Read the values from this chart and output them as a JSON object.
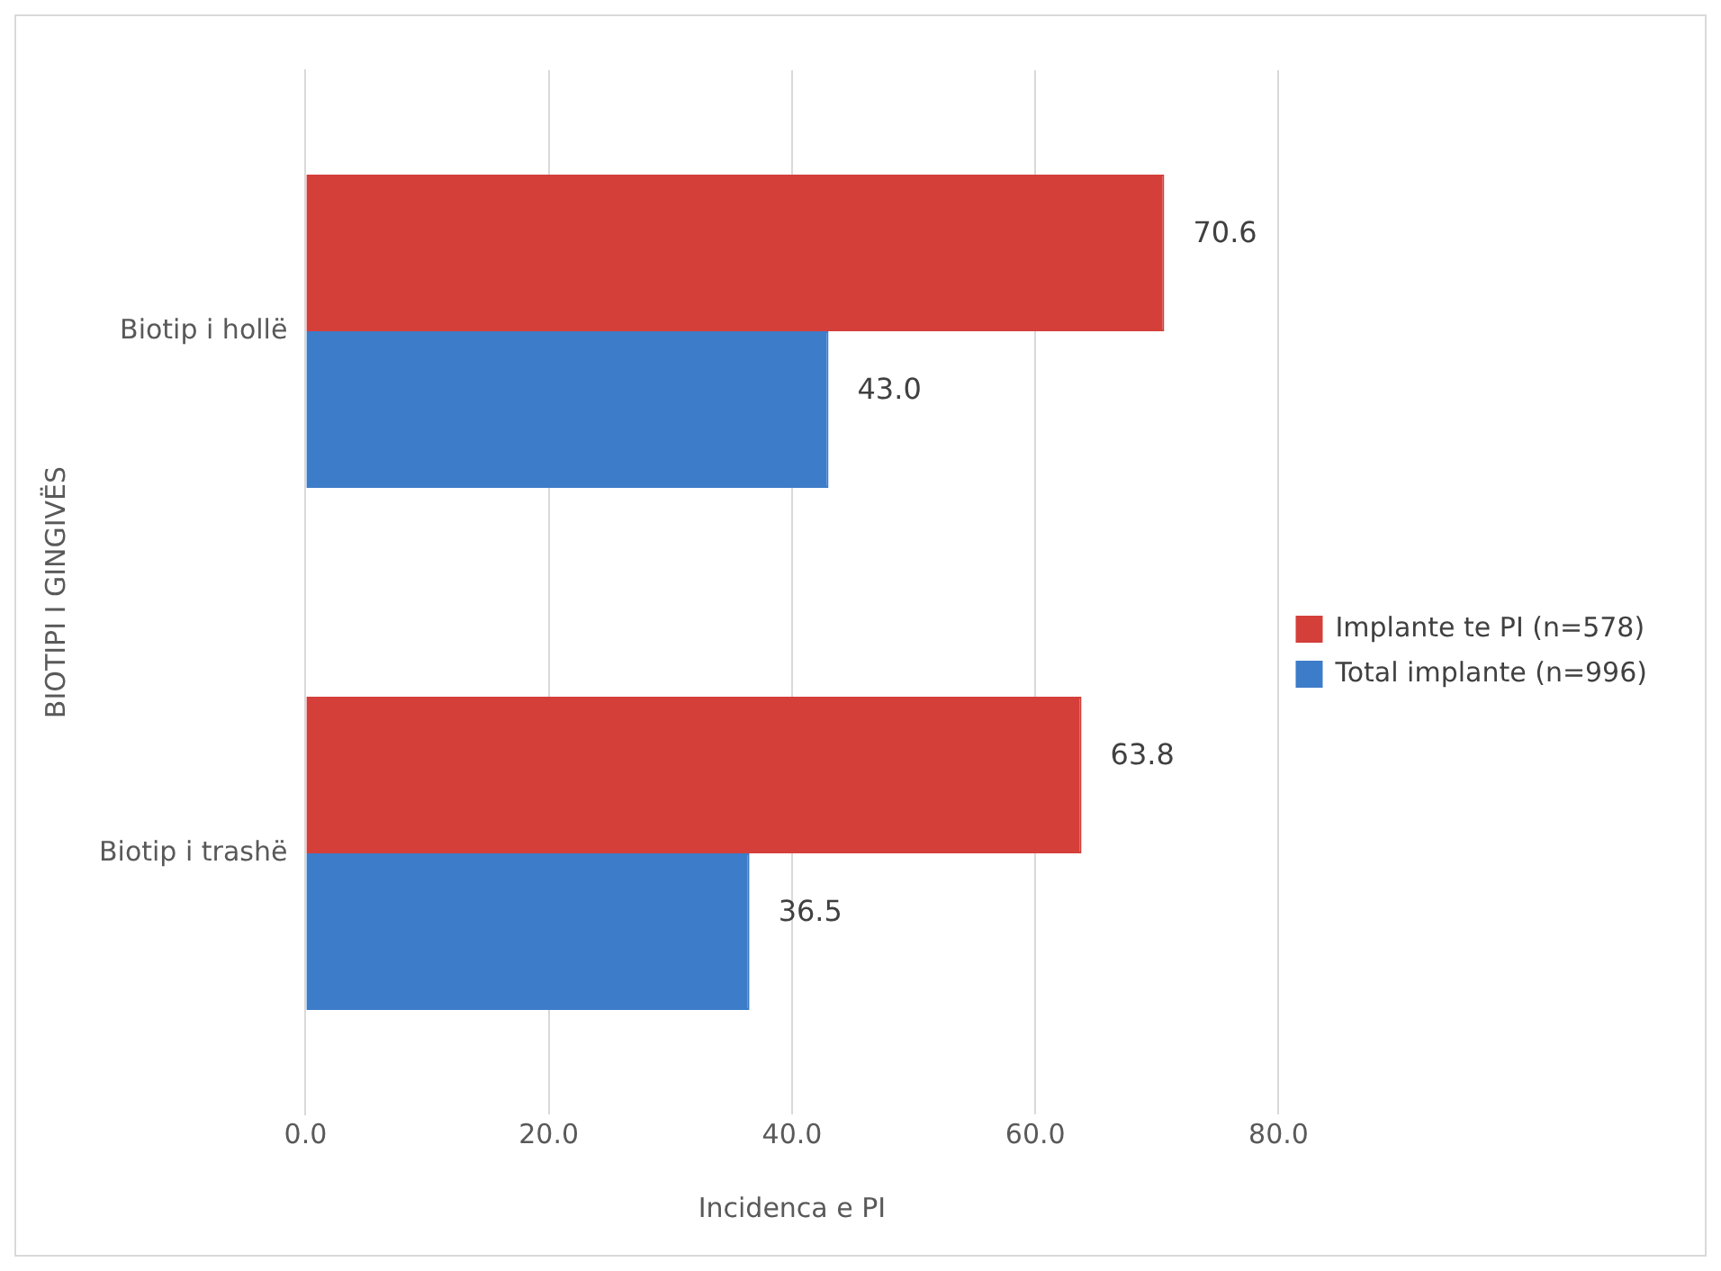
{
  "chart_data": {
    "type": "bar",
    "orientation": "horizontal",
    "xlabel": "Incidenca e PI",
    "ylabel": "BIOTIPI I GINGIVËS",
    "categories": [
      "Biotip i hollë",
      "Biotip i trashë"
    ],
    "series": [
      {
        "name": "Implante te PI (n=578)",
        "color": "#d43f3a",
        "values": [
          70.6,
          63.8
        ],
        "value_labels": [
          "70.6",
          "63.8"
        ]
      },
      {
        "name": "Total implante (n=996)",
        "color": "#3d7cc9",
        "values": [
          43.0,
          36.5
        ],
        "value_labels": [
          "43.0",
          "36.5"
        ]
      }
    ],
    "xlim": [
      0,
      80
    ],
    "xticks": [
      {
        "value": 0,
        "label": "0.0"
      },
      {
        "value": 20,
        "label": "20.0"
      },
      {
        "value": 40,
        "label": "40.0"
      },
      {
        "value": 60,
        "label": "60.0"
      },
      {
        "value": 80,
        "label": "80.0"
      }
    ],
    "grid": "x",
    "legend": "right"
  }
}
